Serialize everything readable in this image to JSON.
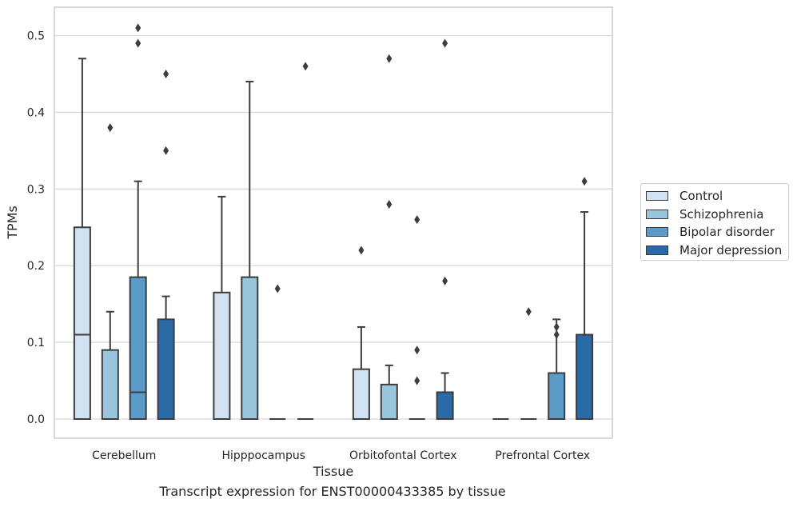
{
  "chart_data": {
    "type": "box",
    "caption": "Transcript expression for ENST00000433385 by tissue",
    "xlabel": "Tissue",
    "ylabel": "TPMs",
    "ylim": [
      -0.025,
      0.537
    ],
    "yticks": [
      0.0,
      0.1,
      0.2,
      0.3,
      0.4,
      0.5
    ],
    "ytick_labels": [
      "0.0",
      "0.1",
      "0.2",
      "0.3",
      "0.4",
      "0.5"
    ],
    "grid": true,
    "legend_position": "right",
    "categories": [
      "Cerebellum",
      "Hipppocampus",
      "Orbitofontal Cortex",
      "Prefrontal Cortex"
    ],
    "series": [
      {
        "name": "Control",
        "color": "#d0e1f2",
        "boxes": [
          {
            "q1": 0.0,
            "median": 0.11,
            "q3": 0.25,
            "whisker_low": 0.0,
            "whisker_high": 0.47,
            "outliers": []
          },
          {
            "q1": 0.0,
            "median": 0.0,
            "q3": 0.165,
            "whisker_low": 0.0,
            "whisker_high": 0.29,
            "outliers": []
          },
          {
            "q1": 0.0,
            "median": 0.0,
            "q3": 0.065,
            "whisker_low": 0.0,
            "whisker_high": 0.12,
            "outliers": [
              0.22
            ]
          },
          {
            "q1": 0.0,
            "median": 0.0,
            "q3": 0.0,
            "whisker_low": 0.0,
            "whisker_high": 0.0,
            "outliers": []
          }
        ]
      },
      {
        "name": "Schizophrenia",
        "color": "#9ac6dd",
        "boxes": [
          {
            "q1": 0.0,
            "median": 0.0,
            "q3": 0.09,
            "whisker_low": 0.0,
            "whisker_high": 0.14,
            "outliers": [
              0.38
            ]
          },
          {
            "q1": 0.0,
            "median": 0.0,
            "q3": 0.185,
            "whisker_low": 0.0,
            "whisker_high": 0.44,
            "outliers": []
          },
          {
            "q1": 0.0,
            "median": 0.0,
            "q3": 0.045,
            "whisker_low": 0.0,
            "whisker_high": 0.07,
            "outliers": [
              0.47,
              0.28
            ]
          },
          {
            "q1": 0.0,
            "median": 0.0,
            "q3": 0.0,
            "whisker_low": 0.0,
            "whisker_high": 0.0,
            "outliers": [
              0.14
            ]
          }
        ]
      },
      {
        "name": "Bipolar disorder",
        "color": "#5a9bc8",
        "boxes": [
          {
            "q1": 0.0,
            "median": 0.035,
            "q3": 0.185,
            "whisker_low": 0.0,
            "whisker_high": 0.31,
            "outliers": [
              0.51,
              0.49
            ]
          },
          {
            "q1": 0.0,
            "median": 0.0,
            "q3": 0.0,
            "whisker_low": 0.0,
            "whisker_high": 0.0,
            "outliers": [
              0.17
            ]
          },
          {
            "q1": 0.0,
            "median": 0.0,
            "q3": 0.0,
            "whisker_low": 0.0,
            "whisker_high": 0.0,
            "outliers": [
              0.26,
              0.09,
              0.05
            ]
          },
          {
            "q1": 0.0,
            "median": 0.0,
            "q3": 0.06,
            "whisker_low": 0.0,
            "whisker_high": 0.13,
            "outliers": [
              0.12,
              0.11
            ]
          }
        ]
      },
      {
        "name": "Major depression",
        "color": "#2a6aa6",
        "boxes": [
          {
            "q1": 0.0,
            "median": 0.0,
            "q3": 0.13,
            "whisker_low": 0.0,
            "whisker_high": 0.16,
            "outliers": [
              0.45,
              0.35
            ]
          },
          {
            "q1": 0.0,
            "median": 0.0,
            "q3": 0.0,
            "whisker_low": 0.0,
            "whisker_high": 0.0,
            "outliers": [
              0.46
            ]
          },
          {
            "q1": 0.0,
            "median": 0.0,
            "q3": 0.035,
            "whisker_low": 0.0,
            "whisker_high": 0.06,
            "outliers": [
              0.49,
              0.18
            ]
          },
          {
            "q1": 0.0,
            "median": 0.0,
            "q3": 0.11,
            "whisker_low": 0.0,
            "whisker_high": 0.27,
            "outliers": [
              0.31
            ]
          }
        ]
      }
    ]
  }
}
